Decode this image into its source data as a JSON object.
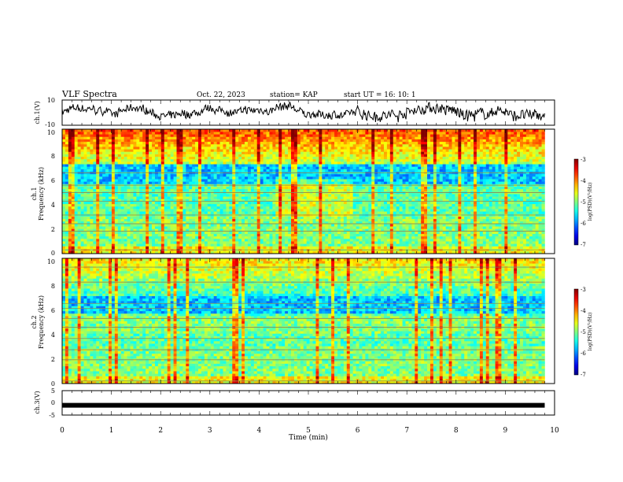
{
  "header": {
    "title": "VLF Spectra",
    "date": "Oct. 22, 2023",
    "station": "station= KAP",
    "start": "start  UT =   16: 10: 1"
  },
  "chart_data": [
    {
      "type": "line",
      "ylabel": "ch.1(V)",
      "ylim": [
        -10,
        10
      ],
      "yticks": [
        "10",
        "-10"
      ],
      "xlim": [
        0,
        10
      ],
      "color": "#000000"
    },
    {
      "type": "heatmap",
      "ylabel_top": "ch.1",
      "ylabel": "Frequency (kHz)",
      "ylim": [
        0,
        10
      ],
      "yticks": [
        "0",
        "2",
        "4",
        "6",
        "8",
        "10"
      ],
      "xlim": [
        0,
        10
      ],
      "colorbar": {
        "label": "log(PSD)(V²/Hz)",
        "ticks": [
          "-3",
          "-4",
          "-5",
          "-6",
          "-7"
        ],
        "range": [
          -7,
          -3
        ]
      }
    },
    {
      "type": "heatmap",
      "ylabel_top": "ch.2",
      "ylabel": "Frequency (kHz)",
      "ylim": [
        0,
        10
      ],
      "yticks": [
        "0",
        "2",
        "4",
        "6",
        "8",
        "10"
      ],
      "xlim": [
        0,
        10
      ],
      "colorbar": {
        "label": "log(PSD)(V²/Hz)",
        "ticks": [
          "-3",
          "-4",
          "-5",
          "-6",
          "-7"
        ],
        "range": [
          -7,
          -3
        ]
      }
    },
    {
      "type": "line",
      "ylabel": "ch.3(V)",
      "ylim": [
        -5,
        5
      ],
      "yticks": [
        "5",
        "0",
        "-5"
      ],
      "value": -1,
      "xlim": [
        0,
        10
      ],
      "xticks": [
        "0",
        "1",
        "2",
        "3",
        "4",
        "5",
        "6",
        "7",
        "8",
        "9",
        "10"
      ],
      "xlabel": "Time (min)",
      "data_end_min": 9.8
    }
  ]
}
